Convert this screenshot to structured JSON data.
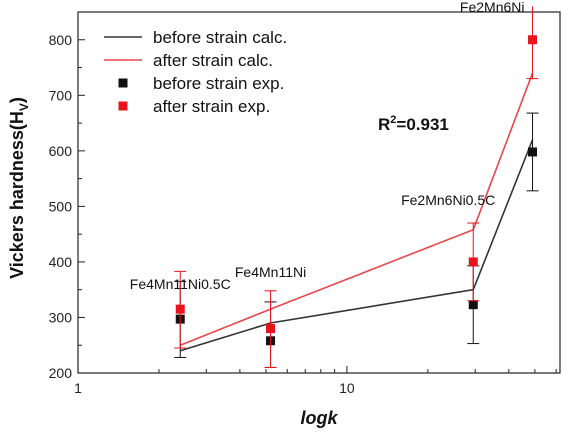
{
  "chart_data": {
    "type": "line",
    "xlabel": "logk",
    "ylabel": "Vickers hardness(H",
    "ylabel_sub": "V",
    "ylabel_end": ")",
    "xscale": "log",
    "xlim": [
      1,
      62
    ],
    "ylim": [
      200,
      850
    ],
    "xticks": [
      {
        "value": 1,
        "label": "1"
      },
      {
        "value": 10,
        "label": "10"
      }
    ],
    "yticks": [
      {
        "value": 200,
        "label": "200"
      },
      {
        "value": 300,
        "label": "300"
      },
      {
        "value": 400,
        "label": "400"
      },
      {
        "value": 500,
        "label": "500"
      },
      {
        "value": 600,
        "label": "600"
      },
      {
        "value": 700,
        "label": "700"
      },
      {
        "value": 800,
        "label": "800"
      }
    ],
    "grid": false,
    "legend_position": "top-left",
    "x": [
      2.4,
      5.2,
      29.5,
      49.0
    ],
    "point_labels": [
      "Fe4Mn11Ni0.5C",
      "Fe4Mn11Ni",
      "Fe2Mn6Ni0.5C",
      "Fe2Mn6Ni"
    ],
    "series": [
      {
        "name": "before strain calc.",
        "kind": "line",
        "color": "#333333",
        "values": [
          240,
          290,
          350,
          620
        ]
      },
      {
        "name": "after strain calc.",
        "kind": "line",
        "color": "#e8474c",
        "values": [
          250,
          315,
          458,
          740
        ]
      },
      {
        "name": "before strain exp.",
        "kind": "points",
        "color": "#111111",
        "values": [
          297,
          258,
          323,
          598
        ],
        "err_low": [
          228,
          210,
          253,
          528
        ],
        "err_high": [
          365,
          328,
          393,
          668
        ]
      },
      {
        "name": "after strain exp.",
        "kind": "points",
        "color": "#e8141c",
        "values": [
          315,
          280,
          400,
          800
        ],
        "err_low": [
          245,
          210,
          330,
          730
        ],
        "err_high": [
          383,
          348,
          470,
          870
        ]
      }
    ],
    "annotation": {
      "text": "R",
      "sup": "2",
      "rest": "=0.931"
    }
  }
}
